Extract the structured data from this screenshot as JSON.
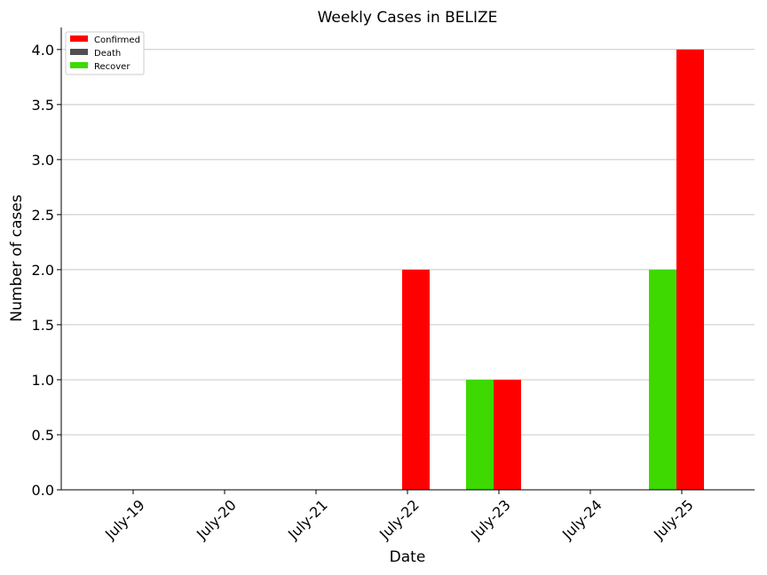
{
  "chart_data": {
    "type": "bar",
    "title": "Weekly Cases in BELIZE",
    "xlabel": "Date",
    "ylabel": "Number of cases",
    "categories": [
      "July-19",
      "July-20",
      "July-21",
      "July-22",
      "July-23",
      "July-24",
      "July-25"
    ],
    "series": [
      {
        "name": "Confirmed",
        "color": "#ff0000",
        "values": [
          0,
          0,
          0,
          2,
          1,
          0,
          4
        ]
      },
      {
        "name": "Death",
        "color": "#505050",
        "values": [
          0,
          0,
          0,
          0,
          0,
          0,
          0
        ]
      },
      {
        "name": "Recover",
        "color": "#3dd900",
        "values": [
          0,
          0,
          0,
          0,
          1,
          0,
          2
        ]
      }
    ],
    "ylim": [
      0,
      4.2
    ],
    "yticks": [
      "0.0",
      "0.5",
      "1.0",
      "1.5",
      "2.0",
      "2.5",
      "3.0",
      "3.5",
      "4.0"
    ],
    "grid": "horizontal",
    "legend_position": "top-left"
  }
}
